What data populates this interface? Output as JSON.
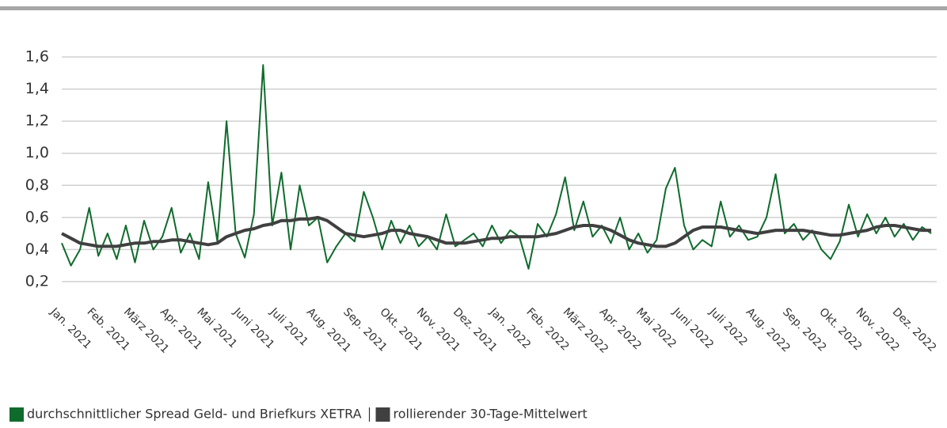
{
  "chart_data": {
    "type": "line",
    "categories": [
      "Jan. 2021",
      null,
      null,
      null,
      "Feb. 2021",
      null,
      null,
      null,
      "März 2021",
      null,
      null,
      null,
      "Apr. 2021",
      null,
      null,
      null,
      "Mai 2021",
      null,
      null,
      null,
      "Juni 2021",
      null,
      null,
      null,
      "Juli 2021",
      null,
      null,
      null,
      "Aug. 2021",
      null,
      null,
      null,
      "Sep. 2021",
      null,
      null,
      null,
      "Okt. 2021",
      null,
      null,
      null,
      "Nov. 2021",
      null,
      null,
      null,
      "Dez. 2021",
      null,
      null,
      null,
      "Jan. 2022",
      null,
      null,
      null,
      "Feb. 2022",
      null,
      null,
      null,
      "März 2022",
      null,
      null,
      null,
      "Apr. 2022",
      null,
      null,
      null,
      "Mai 2022",
      null,
      null,
      null,
      "Juni 2022",
      null,
      null,
      null,
      "Juli 2022",
      null,
      null,
      null,
      "Aug. 2022",
      null,
      null,
      null,
      "Sep. 2022",
      null,
      null,
      null,
      "Okt. 2022",
      null,
      null,
      null,
      "Nov. 2022",
      null,
      null,
      null,
      "Dez. 2022",
      null,
      null,
      null
    ],
    "series": [
      {
        "name": "durchschnittlicher Spread Geld- und Briefkurs XETRA",
        "color": "#0f6b2c",
        "values": [
          0.44,
          0.3,
          0.4,
          0.66,
          0.36,
          0.5,
          0.34,
          0.55,
          0.32,
          0.58,
          0.4,
          0.48,
          0.66,
          0.38,
          0.5,
          0.34,
          0.82,
          0.45,
          1.2,
          0.5,
          0.35,
          0.62,
          1.55,
          0.55,
          0.88,
          0.4,
          0.8,
          0.55,
          0.6,
          0.32,
          0.42,
          0.5,
          0.45,
          0.76,
          0.6,
          0.4,
          0.58,
          0.44,
          0.55,
          0.42,
          0.48,
          0.4,
          0.62,
          0.42,
          0.46,
          0.5,
          0.42,
          0.55,
          0.44,
          0.52,
          0.48,
          0.28,
          0.56,
          0.48,
          0.62,
          0.85,
          0.52,
          0.7,
          0.48,
          0.55,
          0.44,
          0.6,
          0.4,
          0.5,
          0.38,
          0.46,
          0.78,
          0.91,
          0.55,
          0.4,
          0.46,
          0.42,
          0.7,
          0.48,
          0.55,
          0.46,
          0.48,
          0.6,
          0.87,
          0.5,
          0.56,
          0.46,
          0.52,
          0.4,
          0.34,
          0.45,
          0.68,
          0.48,
          0.62,
          0.5,
          0.6,
          0.48,
          0.56,
          0.46,
          0.54,
          0.5
        ]
      },
      {
        "name": "rollierender 30-Tage-Mittelwert",
        "color": "#404040",
        "values": [
          0.5,
          0.47,
          0.44,
          0.43,
          0.42,
          0.42,
          0.42,
          0.43,
          0.44,
          0.44,
          0.45,
          0.45,
          0.46,
          0.46,
          0.45,
          0.44,
          0.43,
          0.44,
          0.48,
          0.5,
          0.52,
          0.53,
          0.55,
          0.56,
          0.58,
          0.58,
          0.59,
          0.59,
          0.6,
          0.58,
          0.54,
          0.5,
          0.49,
          0.48,
          0.49,
          0.5,
          0.52,
          0.52,
          0.5,
          0.49,
          0.48,
          0.46,
          0.44,
          0.44,
          0.44,
          0.45,
          0.46,
          0.47,
          0.47,
          0.48,
          0.48,
          0.48,
          0.48,
          0.49,
          0.5,
          0.52,
          0.54,
          0.55,
          0.55,
          0.54,
          0.52,
          0.49,
          0.46,
          0.44,
          0.43,
          0.42,
          0.42,
          0.44,
          0.48,
          0.52,
          0.54,
          0.54,
          0.54,
          0.53,
          0.52,
          0.51,
          0.5,
          0.51,
          0.52,
          0.52,
          0.52,
          0.52,
          0.51,
          0.5,
          0.49,
          0.49,
          0.5,
          0.51,
          0.52,
          0.54,
          0.55,
          0.55,
          0.54,
          0.53,
          0.52,
          0.52
        ]
      }
    ],
    "ylim": [
      0.2,
      1.6
    ],
    "yticks": [
      {
        "value": 0.2,
        "label": "0,2"
      },
      {
        "value": 0.4,
        "label": "0,4"
      },
      {
        "value": 0.6,
        "label": "0,6"
      },
      {
        "value": 0.8,
        "label": "0,8"
      },
      {
        "value": 1.0,
        "label": "1,0"
      },
      {
        "value": 1.2,
        "label": "1,2"
      },
      {
        "value": 1.4,
        "label": "1,4"
      },
      {
        "value": 1.6,
        "label": "1,6"
      }
    ],
    "grid": true,
    "legend": "bottom"
  }
}
